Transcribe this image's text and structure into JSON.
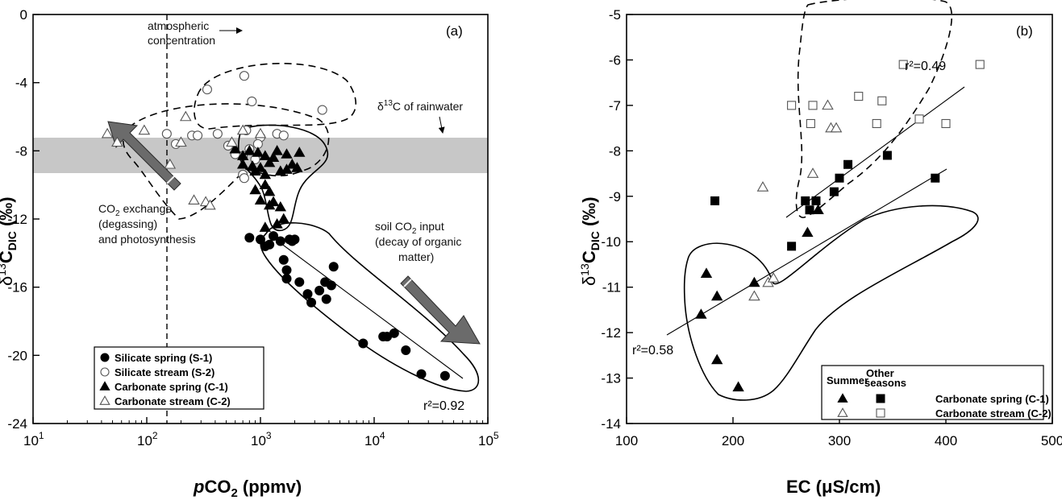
{
  "chart_data": [
    {
      "type": "scatter",
      "panel_label": "(a)",
      "xlabel": "pCO2 (ppmv)",
      "xlabel_main": "CO",
      "xlabel_italic": "p",
      "xlabel_sub": "2",
      "xlabel_unit": " (ppmv)",
      "ylabel_main": "δ",
      "ylabel_sup": "13",
      "ylabel_c": "C",
      "ylabel_sub": "DIC",
      "ylabel_unit": " (‰)",
      "x_scale": "log",
      "xlim": [
        10,
        100000
      ],
      "ylim": [
        -24,
        0
      ],
      "x_ticks": [
        {
          "value": 10,
          "base": "10",
          "exp": "1"
        },
        {
          "value": 100,
          "base": "10",
          "exp": "2"
        },
        {
          "value": 1000,
          "base": "10",
          "exp": "3"
        },
        {
          "value": 10000,
          "base": "10",
          "exp": "4"
        },
        {
          "value": 100000,
          "base": "10",
          "exp": "5"
        }
      ],
      "y_ticks": [
        "0",
        "-4",
        "-8",
        "-12",
        "-16",
        "-20",
        "-24"
      ],
      "y_tick_values": [
        0,
        -4,
        -8,
        -12,
        -16,
        -20,
        -24
      ],
      "rainwater_band": [
        -9.3,
        -7.2
      ],
      "atmospheric_line_x": 400,
      "annotations": {
        "atmospheric_1": "atmospheric",
        "atmospheric_2": "concentration",
        "rainwater_delta": "δ",
        "rainwater_sup": "13",
        "rainwater_text": "C of rainwater",
        "co2_exchange_1a": "CO",
        "co2_exchange_1b": "2",
        "co2_exchange_1c": " exchange",
        "co2_exchange_2": "(degassing)",
        "co2_exchange_3": "and photosynthesis",
        "soil_1a": "soil CO",
        "soil_1b": "2",
        "soil_1c": " input",
        "soil_2": "(decay of organic",
        "soil_3": "matter)"
      },
      "r2_label": "r²=0.92",
      "legend": [
        {
          "name": "Silicate spring (S-1)",
          "marker": "filled-circle"
        },
        {
          "name": "Silicate stream (S-2)",
          "marker": "open-circle"
        },
        {
          "name": "Carbonate spring (C-1)",
          "marker": "filled-triangle"
        },
        {
          "name": "Carbonate stream (C-2)",
          "marker": "open-triangle"
        }
      ],
      "series": [
        {
          "name": "Silicate spring (S-1)",
          "marker": "filled-circle",
          "points": [
            [
              800,
              -13.1
            ],
            [
              1000,
              -13.2
            ],
            [
              1100,
              -13.6
            ],
            [
              1200,
              -13.5
            ],
            [
              1300,
              -13.0
            ],
            [
              1500,
              -13.3
            ],
            [
              1800,
              -13.2
            ],
            [
              1900,
              -13.3
            ],
            [
              2000,
              -13.2
            ],
            [
              1600,
              -14.4
            ],
            [
              1700,
              -15.0
            ],
            [
              1700,
              -15.5
            ],
            [
              2200,
              -15.7
            ],
            [
              2600,
              -16.4
            ],
            [
              2800,
              -16.9
            ],
            [
              3300,
              -16.2
            ],
            [
              3800,
              -16.7
            ],
            [
              3700,
              -15.7
            ],
            [
              4200,
              -15.9
            ],
            [
              4400,
              -14.8
            ],
            [
              8000,
              -19.3
            ],
            [
              12000,
              -18.9
            ],
            [
              13000,
              -18.9
            ],
            [
              15000,
              -18.7
            ],
            [
              19000,
              -19.7
            ],
            [
              26000,
              -21.1
            ],
            [
              42000,
              -21.2
            ]
          ]
        },
        {
          "name": "Silicate stream (S-2)",
          "marker": "open-circle",
          "points": [
            [
              340,
              -4.4
            ],
            [
              720,
              -3.6
            ],
            [
              840,
              -5.1
            ],
            [
              3500,
              -5.6
            ],
            [
              150,
              -7.0
            ],
            [
              250,
              -7.1
            ],
            [
              280,
              -7.1
            ],
            [
              420,
              -7.0
            ],
            [
              750,
              -6.8
            ],
            [
              1000,
              -7.2
            ],
            [
              1400,
              -7.0
            ],
            [
              1600,
              -7.1
            ],
            [
              180,
              -7.6
            ],
            [
              520,
              -7.7
            ],
            [
              800,
              -7.9
            ],
            [
              950,
              -7.6
            ],
            [
              700,
              -8.3
            ],
            [
              900,
              -8.5
            ],
            [
              600,
              -8.2
            ],
            [
              700,
              -9.4
            ],
            [
              720,
              -9.6
            ]
          ]
        },
        {
          "name": "Carbonate spring (C-1)",
          "marker": "filled-triangle",
          "points": [
            [
              600,
              -7.9
            ],
            [
              700,
              -8.3
            ],
            [
              800,
              -8.0
            ],
            [
              950,
              -8.1
            ],
            [
              1100,
              -8.3
            ],
            [
              1300,
              -8.4
            ],
            [
              1400,
              -8.0
            ],
            [
              1700,
              -8.2
            ],
            [
              2200,
              -8.1
            ],
            [
              700,
              -8.8
            ],
            [
              850,
              -8.9
            ],
            [
              900,
              -9.2
            ],
            [
              1000,
              -9.0
            ],
            [
              1100,
              -9.4
            ],
            [
              1200,
              -8.7
            ],
            [
              1500,
              -9.2
            ],
            [
              1700,
              -9.1
            ],
            [
              1900,
              -8.8
            ],
            [
              2100,
              -9.0
            ],
            [
              900,
              -10.3
            ],
            [
              1100,
              -10.0
            ],
            [
              1200,
              -10.4
            ],
            [
              1000,
              -10.9
            ],
            [
              1200,
              -11.2
            ],
            [
              1300,
              -11.0
            ],
            [
              1500,
              -11.3
            ],
            [
              1600,
              -12.0
            ],
            [
              1400,
              -12.3
            ],
            [
              1100,
              -12.5
            ]
          ]
        },
        {
          "name": "Carbonate stream (C-2)",
          "marker": "open-triangle",
          "points": [
            [
              45,
              -7.0
            ],
            [
              55,
              -7.5
            ],
            [
              95,
              -6.8
            ],
            [
              220,
              -6.0
            ],
            [
              700,
              -6.8
            ],
            [
              560,
              -7.5
            ],
            [
              1000,
              -7.0
            ],
            [
              200,
              -7.5
            ],
            [
              160,
              -8.8
            ],
            [
              330,
              -11.0
            ],
            [
              260,
              -10.9
            ],
            [
              360,
              -11.2
            ]
          ]
        }
      ]
    },
    {
      "type": "scatter",
      "panel_label": "(b)",
      "xlabel": "EC (μS/cm)",
      "ylabel_main": "δ",
      "ylabel_sup": "13",
      "ylabel_c": "C",
      "ylabel_sub": "DIC",
      "ylabel_unit": " (‰)",
      "xlim": [
        100,
        500
      ],
      "ylim": [
        -14,
        -5
      ],
      "x_ticks": [
        "100",
        "200",
        "300",
        "400",
        "500"
      ],
      "x_tick_values": [
        100,
        200,
        300,
        400,
        500
      ],
      "y_ticks": [
        "-5",
        "-6",
        "-7",
        "-8",
        "-9",
        "-10",
        "-11",
        "-12",
        "-13",
        "-14"
      ],
      "y_tick_values": [
        -5,
        -6,
        -7,
        -8,
        -9,
        -10,
        -11,
        -12,
        -13,
        -14
      ],
      "r2_labels": [
        "r²=0.49",
        "r²=0.58"
      ],
      "legend_headers": {
        "summer": "Summer",
        "other_1": "Other",
        "other_2": "seasons"
      },
      "legend": [
        {
          "name": "Carbonate spring (C-1)",
          "summer_marker": "filled-triangle",
          "other_marker": "filled-square"
        },
        {
          "name": "Carbonate stream (C-2)",
          "summer_marker": "open-triangle",
          "other_marker": "open-square"
        }
      ],
      "series": [
        {
          "name": "Carbonate spring (C-1) Summer",
          "marker": "filled-triangle",
          "points": [
            [
              175,
              -10.7
            ],
            [
              170,
              -11.6
            ],
            [
              185,
              -11.2
            ],
            [
              185,
              -12.6
            ],
            [
              205,
              -13.2
            ],
            [
              220,
              -10.9
            ],
            [
              270,
              -9.8
            ],
            [
              280,
              -9.3
            ]
          ]
        },
        {
          "name": "Carbonate spring (C-1) Other seasons",
          "marker": "filled-square",
          "points": [
            [
              183,
              -9.1
            ],
            [
              255,
              -10.1
            ],
            [
              268,
              -9.1
            ],
            [
              272,
              -9.3
            ],
            [
              278,
              -9.1
            ],
            [
              295,
              -8.9
            ],
            [
              300,
              -8.6
            ],
            [
              308,
              -8.3
            ],
            [
              345,
              -8.1
            ],
            [
              390,
              -8.6
            ]
          ]
        },
        {
          "name": "Carbonate stream (C-2) Summer",
          "marker": "open-triangle",
          "points": [
            [
              220,
              -11.2
            ],
            [
              233,
              -10.9
            ],
            [
              238,
              -10.8
            ],
            [
              228,
              -8.8
            ],
            [
              275,
              -8.5
            ],
            [
              289,
              -7.0
            ],
            [
              292,
              -7.5
            ],
            [
              297,
              -7.5
            ]
          ]
        },
        {
          "name": "Carbonate stream (C-2) Other seasons",
          "marker": "open-square",
          "points": [
            [
              255,
              -7.0
            ],
            [
              275,
              -7.0
            ],
            [
              273,
              -7.4
            ],
            [
              318,
              -6.8
            ],
            [
              335,
              -7.4
            ],
            [
              340,
              -6.9
            ],
            [
              360,
              -6.1
            ],
            [
              375,
              -7.3
            ],
            [
              400,
              -7.4
            ],
            [
              432,
              -6.1
            ]
          ]
        }
      ]
    }
  ]
}
